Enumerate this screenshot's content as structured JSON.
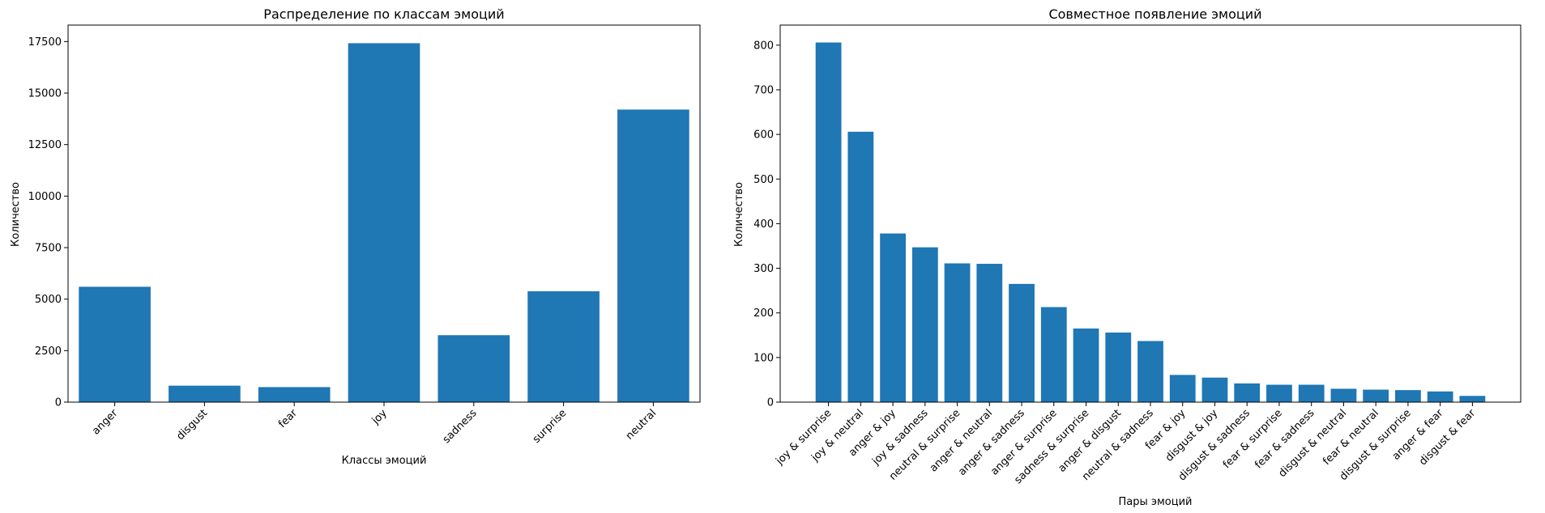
{
  "chart_data": [
    {
      "type": "bar",
      "title": "Распределение по классам эмоций",
      "xlabel": "Классы эмоций",
      "ylabel": "Количество",
      "categories": [
        "anger",
        "disgust",
        "fear",
        "joy",
        "sadness",
        "surprise",
        "neutral"
      ],
      "values": [
        5600,
        800,
        730,
        17420,
        3250,
        5380,
        14200
      ],
      "ylim": [
        0,
        18300
      ],
      "yticks": [
        0,
        2500,
        5000,
        7500,
        10000,
        12500,
        15000,
        17500
      ],
      "color": "#1f77b4",
      "grid": false
    },
    {
      "type": "bar",
      "title": "Совместное появление эмоций",
      "xlabel": "Пары эмоций",
      "ylabel": "Количество",
      "categories": [
        "joy & surprise",
        "joy & neutral",
        "anger & joy",
        "joy & sadness",
        "neutral & surprise",
        "anger & neutral",
        "anger & sadness",
        "anger & surprise",
        "sadness & surprise",
        "anger & disgust",
        "neutral & sadness",
        "fear & joy",
        "disgust & joy",
        "disgust & sadness",
        "fear & surprise",
        "fear & sadness",
        "disgust & neutral",
        "fear & neutral",
        "disgust & surprise",
        "anger & fear",
        "disgust & fear"
      ],
      "values": [
        806,
        606,
        378,
        347,
        311,
        310,
        265,
        213,
        165,
        156,
        137,
        61,
        55,
        42,
        39,
        39,
        30,
        28,
        27,
        24,
        14
      ],
      "ylim": [
        0,
        845
      ],
      "yticks": [
        0,
        100,
        200,
        300,
        400,
        500,
        600,
        700,
        800
      ],
      "color": "#1f77b4",
      "grid": false
    }
  ]
}
